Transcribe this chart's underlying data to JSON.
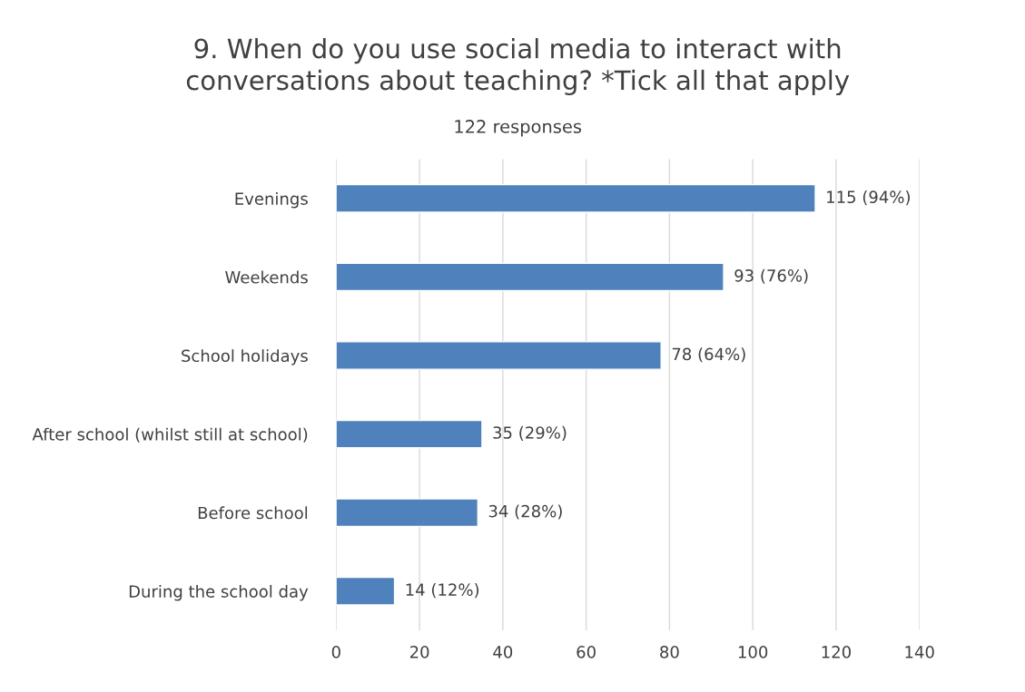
{
  "chart_data": {
    "type": "bar",
    "orientation": "horizontal",
    "title": "9. When do you use social media to interact with\nconversations about teaching? *Tick all that apply",
    "subtitle": "122 responses",
    "categories": [
      "Evenings",
      "Weekends",
      "School holidays",
      "After school (whilst still at school)",
      "Before school",
      "During the school day"
    ],
    "values": [
      115,
      93,
      78,
      35,
      34,
      14
    ],
    "value_labels": [
      "115 (94%)",
      "93 (76%)",
      "78 (64%)",
      "35 (29%)",
      "34 (28%)",
      "14 (12%)"
    ],
    "color": "#4f81bd",
    "xlim": [
      0,
      140
    ],
    "xticks": [
      0,
      20,
      40,
      60,
      80,
      100,
      120,
      140
    ],
    "grid": "x",
    "legend": false
  }
}
